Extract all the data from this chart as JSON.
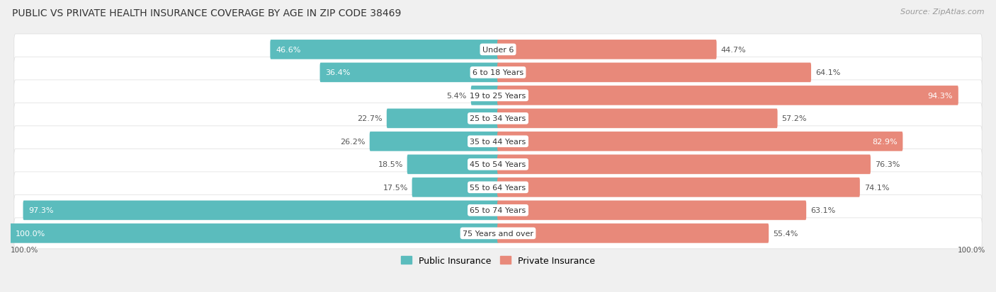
{
  "title": "PUBLIC VS PRIVATE HEALTH INSURANCE COVERAGE BY AGE IN ZIP CODE 38469",
  "source": "Source: ZipAtlas.com",
  "categories": [
    "Under 6",
    "6 to 18 Years",
    "19 to 25 Years",
    "25 to 34 Years",
    "35 to 44 Years",
    "45 to 54 Years",
    "55 to 64 Years",
    "65 to 74 Years",
    "75 Years and over"
  ],
  "public_values": [
    46.6,
    36.4,
    5.4,
    22.7,
    26.2,
    18.5,
    17.5,
    97.3,
    100.0
  ],
  "private_values": [
    44.7,
    64.1,
    94.3,
    57.2,
    82.9,
    76.3,
    74.1,
    63.1,
    55.4
  ],
  "public_color": "#5bbcbd",
  "private_color": "#e8897a",
  "background_color": "#f0f0f0",
  "row_bg_color": "#ffffff",
  "max_value": 100.0,
  "title_fontsize": 10,
  "label_fontsize": 8,
  "source_fontsize": 8,
  "value_fontsize": 8,
  "legend_fontsize": 9
}
